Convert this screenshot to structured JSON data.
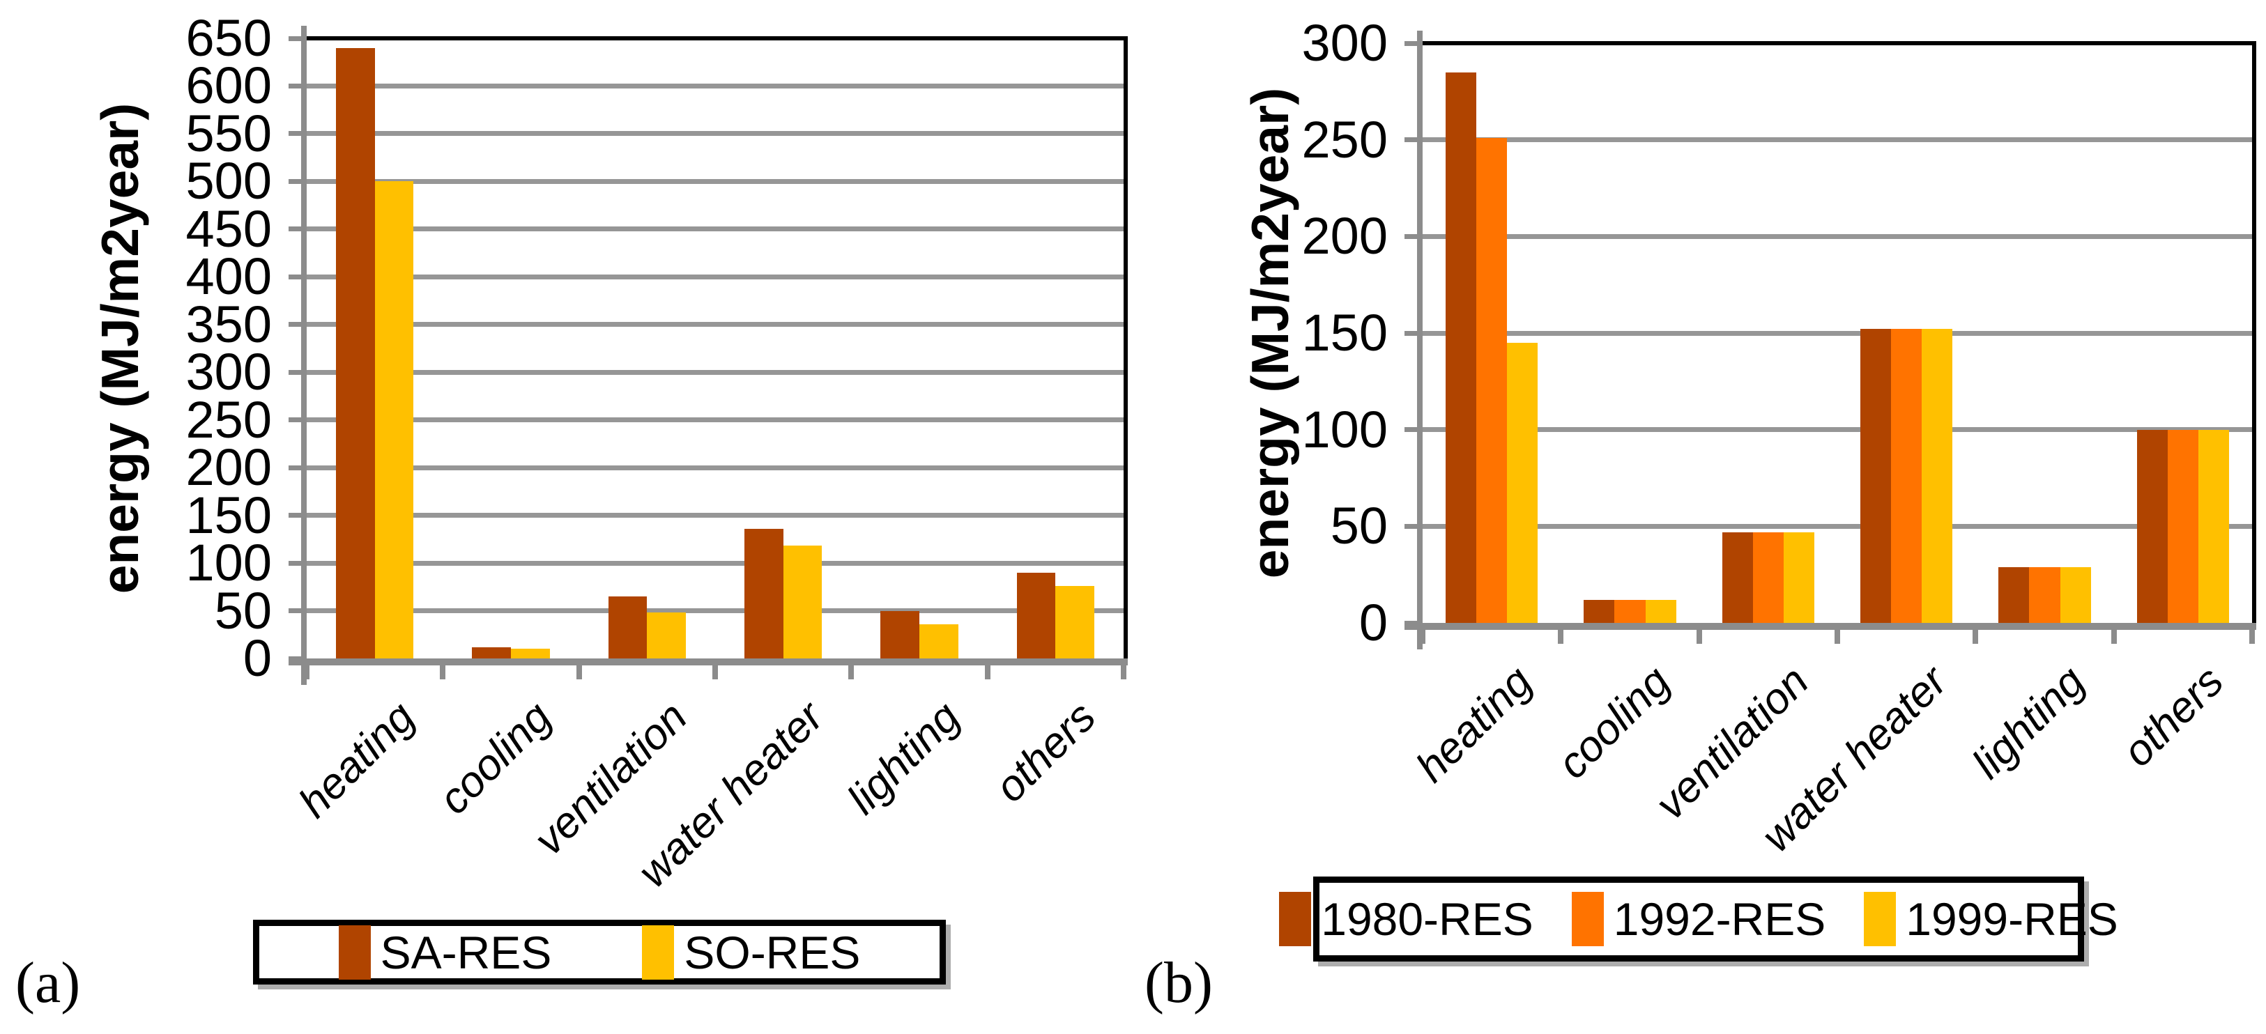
{
  "figure": {
    "background": "#ffffff",
    "axis_colors": {
      "gridline": "#969696",
      "axis": "#8C8C8C",
      "border": "#000000",
      "text": "#000000"
    }
  },
  "chart_data": [
    {
      "id": "a",
      "panel_label": "(a)",
      "type": "bar",
      "title": "",
      "xlabel": "",
      "ylabel": "energy (MJ/m2year)",
      "ylim": [
        0,
        650
      ],
      "ytick_step": 50,
      "grid": true,
      "legend_position": "bottom",
      "categories": [
        "heating",
        "cooling",
        "ventilation",
        "water heater",
        "lighting",
        "others"
      ],
      "series": [
        {
          "name": "SA-RES",
          "color": "#B04400",
          "values": [
            640,
            12,
            65,
            136,
            50,
            90
          ]
        },
        {
          "name": "SO-RES",
          "color": "#FFC000",
          "values": [
            500,
            10,
            48,
            118,
            36,
            76
          ]
        }
      ]
    },
    {
      "id": "b",
      "panel_label": "(b)",
      "type": "bar",
      "title": "",
      "xlabel": "",
      "ylabel": "energy (MJ/m2year)",
      "ylim": [
        0,
        300
      ],
      "ytick_step": 50,
      "grid": true,
      "legend_position": "bottom",
      "categories": [
        "heating",
        "cooling",
        "ventilation",
        "water heater",
        "lighting",
        "others"
      ],
      "series": [
        {
          "name": "1980-RES",
          "color": "#B04400",
          "values": [
            285,
            12,
            47,
            152,
            29,
            100
          ]
        },
        {
          "name": "1992-RES",
          "color": "#FF7300",
          "values": [
            251,
            12,
            47,
            152,
            29,
            100
          ]
        },
        {
          "name": "1999-RES",
          "color": "#FFC000",
          "values": [
            145,
            12,
            47,
            152,
            29,
            100
          ]
        }
      ]
    }
  ]
}
